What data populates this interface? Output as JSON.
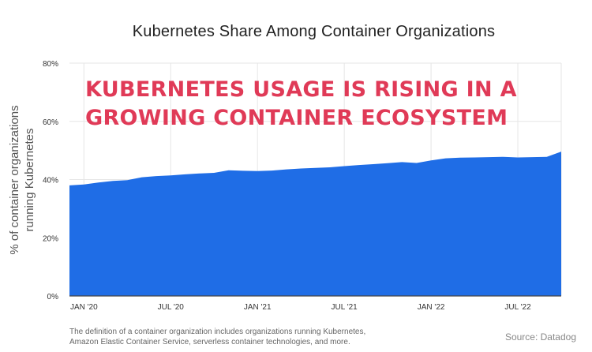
{
  "title": "Kubernetes Share Among Container Organizations",
  "ylabel_lines": [
    "% of container organizations",
    "running Kubernetes"
  ],
  "headline_lines": [
    "KUBERNETES USAGE IS RISING IN A",
    "GROWING CONTAINER ECOSYSTEM"
  ],
  "footnote_lines": [
    "The definition of a container organization includes organizations running Kubernetes,",
    "Amazon Elastic Container Service, serverless container technologies, and more."
  ],
  "source": "Source: Datadog",
  "chart_data": {
    "type": "area",
    "x_ticks": [
      "JAN '20",
      "JUL '20",
      "JAN '21",
      "JUL '21",
      "JAN '22",
      "JUL '22"
    ],
    "y_ticks": [
      "0%",
      "20%",
      "40%",
      "60%",
      "80%"
    ],
    "ylim": [
      0,
      80
    ],
    "grid": true,
    "fill_color": "#1f6de6",
    "x": [
      "Dec '19",
      "Jan '20",
      "Feb '20",
      "Mar '20",
      "Apr '20",
      "May '20",
      "Jun '20",
      "Jul '20",
      "Aug '20",
      "Sep '20",
      "Oct '20",
      "Nov '20",
      "Dec '20",
      "Jan '21",
      "Feb '21",
      "Mar '21",
      "Apr '21",
      "May '21",
      "Jun '21",
      "Jul '21",
      "Aug '21",
      "Sep '21",
      "Oct '21",
      "Nov '21",
      "Dec '21",
      "Jan '22",
      "Feb '22",
      "Mar '22",
      "Apr '22",
      "May '22",
      "Jun '22",
      "Jul '22",
      "Aug '22",
      "Sep '22",
      "Oct '22"
    ],
    "values": [
      38.0,
      38.3,
      39.0,
      39.5,
      39.8,
      40.8,
      41.2,
      41.4,
      41.8,
      42.1,
      42.3,
      43.2,
      43.0,
      42.9,
      43.1,
      43.5,
      43.8,
      44.0,
      44.2,
      44.6,
      45.0,
      45.3,
      45.6,
      46.0,
      45.7,
      46.6,
      47.3,
      47.5,
      47.6,
      47.7,
      47.8,
      47.6,
      47.7,
      47.8,
      49.6
    ]
  }
}
